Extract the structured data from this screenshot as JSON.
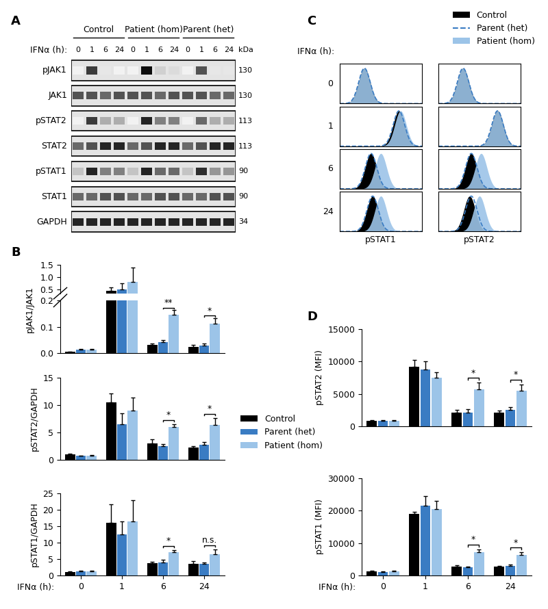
{
  "groups": [
    {
      "name": "Control",
      "color": "#000000"
    },
    {
      "name": "Parent (het)",
      "color": "#3a7cc3"
    },
    {
      "name": "Patient (hom)",
      "color": "#9cc4e8"
    }
  ],
  "blot": {
    "label": "A",
    "time_label": "IFNα (h):",
    "lane_groups": [
      "Control",
      "Patient (hom)",
      "Parent (het)"
    ],
    "lanes": [
      "0",
      "1",
      "6",
      "24"
    ],
    "unit": "kDa",
    "rows": [
      {
        "name": "pJAK1",
        "kDa": 130,
        "intensity": [
          0.0,
          0.8,
          0.05,
          0.0,
          0.0,
          1.0,
          0.15,
          0.1,
          0.0,
          0.7,
          0.05,
          0.05
        ]
      },
      {
        "name": "JAK1",
        "kDa": 130,
        "intensity": [
          0.7,
          0.7,
          0.6,
          0.7,
          0.7,
          0.7,
          0.6,
          0.7,
          0.7,
          0.7,
          0.6,
          0.6
        ]
      },
      {
        "name": "pSTAT2",
        "kDa": 113,
        "intensity": [
          0.0,
          0.8,
          0.3,
          0.3,
          0.0,
          0.9,
          0.5,
          0.5,
          0.0,
          0.6,
          0.3,
          0.3
        ]
      },
      {
        "name": "STAT2",
        "kDa": 113,
        "intensity": [
          0.6,
          0.7,
          0.9,
          0.9,
          0.6,
          0.7,
          0.9,
          0.9,
          0.6,
          0.7,
          0.9,
          0.9
        ]
      },
      {
        "name": "pSTAT1",
        "kDa": 90,
        "intensity": [
          0.2,
          0.9,
          0.5,
          0.5,
          0.2,
          0.9,
          0.6,
          0.6,
          0.2,
          0.85,
          0.4,
          0.4
        ]
      },
      {
        "name": "STAT1",
        "kDa": 90,
        "intensity": [
          0.6,
          0.6,
          0.7,
          0.7,
          0.6,
          0.6,
          0.7,
          0.7,
          0.6,
          0.6,
          0.7,
          0.7
        ]
      },
      {
        "name": "GAPDH",
        "kDa": 34,
        "intensity": [
          0.9,
          0.9,
          0.9,
          0.9,
          0.9,
          0.9,
          0.9,
          0.9,
          0.9,
          0.9,
          0.9,
          0.9
        ]
      }
    ]
  },
  "chart_data": [
    {
      "label": "B",
      "type": "bar",
      "ylabel": "pJAK1/JAK1",
      "categories": [
        "0",
        "1",
        "6",
        "24"
      ],
      "tick_labels": "y",
      "segments": [
        {
          "ylim": [
            0,
            0.2
          ],
          "yticks": [
            {
              "value": 0,
              "label": "0.0"
            },
            0.1,
            0.2
          ]
        },
        {
          "ylim": [
            0.35,
            1.5
          ],
          "yticks": [
            0.5,
            {
              "value": 1,
              "label": "1.0"
            },
            1.5
          ]
        }
      ],
      "series": [
        {
          "values": [
            0.005,
            0.45,
            0.032,
            0.025
          ],
          "errors": [
            0.002,
            0.15,
            0.006,
            0.007
          ]
        },
        {
          "values": [
            0.013,
            0.5,
            0.043,
            0.028
          ],
          "errors": [
            0.003,
            0.25,
            0.006,
            0.008
          ]
        },
        {
          "values": [
            0.013,
            0.8,
            0.145,
            0.113
          ],
          "errors": [
            0.004,
            0.6,
            0.018,
            0.02
          ]
        }
      ],
      "annotations": [
        {
          "category": "6",
          "text": "**"
        },
        {
          "category": "24",
          "text": "*"
        }
      ]
    },
    {
      "type": "bar",
      "ylabel": "pSTAT2/GAPDH",
      "categories": [
        "0",
        "1",
        "6",
        "24"
      ],
      "tick_labels": "y",
      "ylim": [
        0,
        15
      ],
      "yticks": [
        0,
        5,
        10,
        15
      ],
      "series": [
        {
          "values": [
            1.0,
            10.5,
            3.0,
            2.2
          ],
          "errors": [
            0.1,
            1.6,
            0.7,
            0.3
          ]
        },
        {
          "values": [
            0.7,
            6.5,
            2.5,
            2.8
          ],
          "errors": [
            0.1,
            2.0,
            0.4,
            0.4
          ]
        },
        {
          "values": [
            0.8,
            9.0,
            6.0,
            6.3
          ],
          "errors": [
            0.1,
            2.3,
            0.5,
            1.3
          ]
        }
      ],
      "annotations": [
        {
          "category": "6",
          "text": "*"
        },
        {
          "category": "24",
          "text": "*"
        }
      ]
    },
    {
      "type": "bar",
      "ylabel": "pSTAT1/GAPDH",
      "categories": [
        "0",
        "1",
        "6",
        "24"
      ],
      "tick_labels": true,
      "xlabel": "IFNα (h):",
      "ylim": [
        0,
        25
      ],
      "yticks": [
        0,
        5,
        10,
        15,
        20,
        25
      ],
      "series": [
        {
          "values": [
            1.0,
            16.0,
            3.7,
            3.6
          ],
          "errors": [
            0.3,
            5.7,
            0.4,
            0.7
          ]
        },
        {
          "values": [
            1.2,
            12.5,
            4.0,
            3.5
          ],
          "errors": [
            0.3,
            4.0,
            0.8,
            0.5
          ]
        },
        {
          "values": [
            1.2,
            16.5,
            7.0,
            6.5
          ],
          "errors": [
            0.3,
            6.3,
            0.8,
            1.5
          ]
        }
      ],
      "annotations": [
        {
          "category": "6",
          "text": "*"
        },
        {
          "category": "24",
          "text": "n.s."
        }
      ]
    },
    {
      "label": "D",
      "type": "bar",
      "ylabel": "pSTAT2 (MFI)",
      "categories": [
        "0",
        "1",
        "6",
        "24"
      ],
      "tick_labels": "y",
      "ylim": [
        0,
        15000
      ],
      "yticks": [
        0,
        5000,
        10000,
        15000
      ],
      "series": [
        {
          "values": [
            800,
            9200,
            2100,
            2100
          ],
          "errors": [
            100,
            1000,
            400,
            300
          ]
        },
        {
          "values": [
            800,
            8700,
            2100,
            2500
          ],
          "errors": [
            100,
            1300,
            500,
            500
          ]
        },
        {
          "values": [
            800,
            7500,
            5700,
            5500
          ],
          "errors": [
            100,
            800,
            1000,
            900
          ]
        }
      ],
      "annotations": [
        {
          "category": "6",
          "text": "*"
        },
        {
          "category": "24",
          "text": "*"
        }
      ]
    },
    {
      "type": "bar",
      "ylabel": "pSTAT1 (MFI)",
      "categories": [
        "0",
        "1",
        "6",
        "24"
      ],
      "tick_labels": true,
      "xlabel": "IFNα (h):",
      "ylim": [
        0,
        30000
      ],
      "yticks": [
        0,
        10000,
        20000,
        30000
      ],
      "series": [
        {
          "values": [
            1300,
            19000,
            2800,
            2800
          ],
          "errors": [
            200,
            500,
            300,
            200
          ]
        },
        {
          "values": [
            1100,
            21500,
            2500,
            3000
          ],
          "errors": [
            200,
            3000,
            300,
            300
          ]
        },
        {
          "values": [
            1300,
            20500,
            7200,
            6300
          ],
          "errors": [
            200,
            2500,
            800,
            800
          ]
        }
      ],
      "annotations": [
        {
          "category": "6",
          "text": "*"
        },
        {
          "category": "24",
          "text": "*"
        }
      ]
    }
  ],
  "histograms": {
    "label": "C",
    "time_label": "IFNα (h):",
    "times": [
      "0",
      "1",
      "6",
      "24"
    ],
    "markers": [
      "pSTAT1",
      "pSTAT2"
    ],
    "xlim": [
      0,
      1
    ],
    "spread": 0.07,
    "peaks": {
      "pSTAT1": [
        [
          0.3,
          0.3,
          0.3
        ],
        [
          0.72,
          0.72,
          0.74
        ],
        [
          0.38,
          0.38,
          0.5
        ],
        [
          0.4,
          0.4,
          0.5
        ]
      ],
      "pSTAT2": [
        [
          0.3,
          0.3,
          0.3
        ],
        [
          0.72,
          0.72,
          0.72
        ],
        [
          0.4,
          0.4,
          0.52
        ],
        [
          0.38,
          0.4,
          0.5
        ]
      ]
    }
  }
}
